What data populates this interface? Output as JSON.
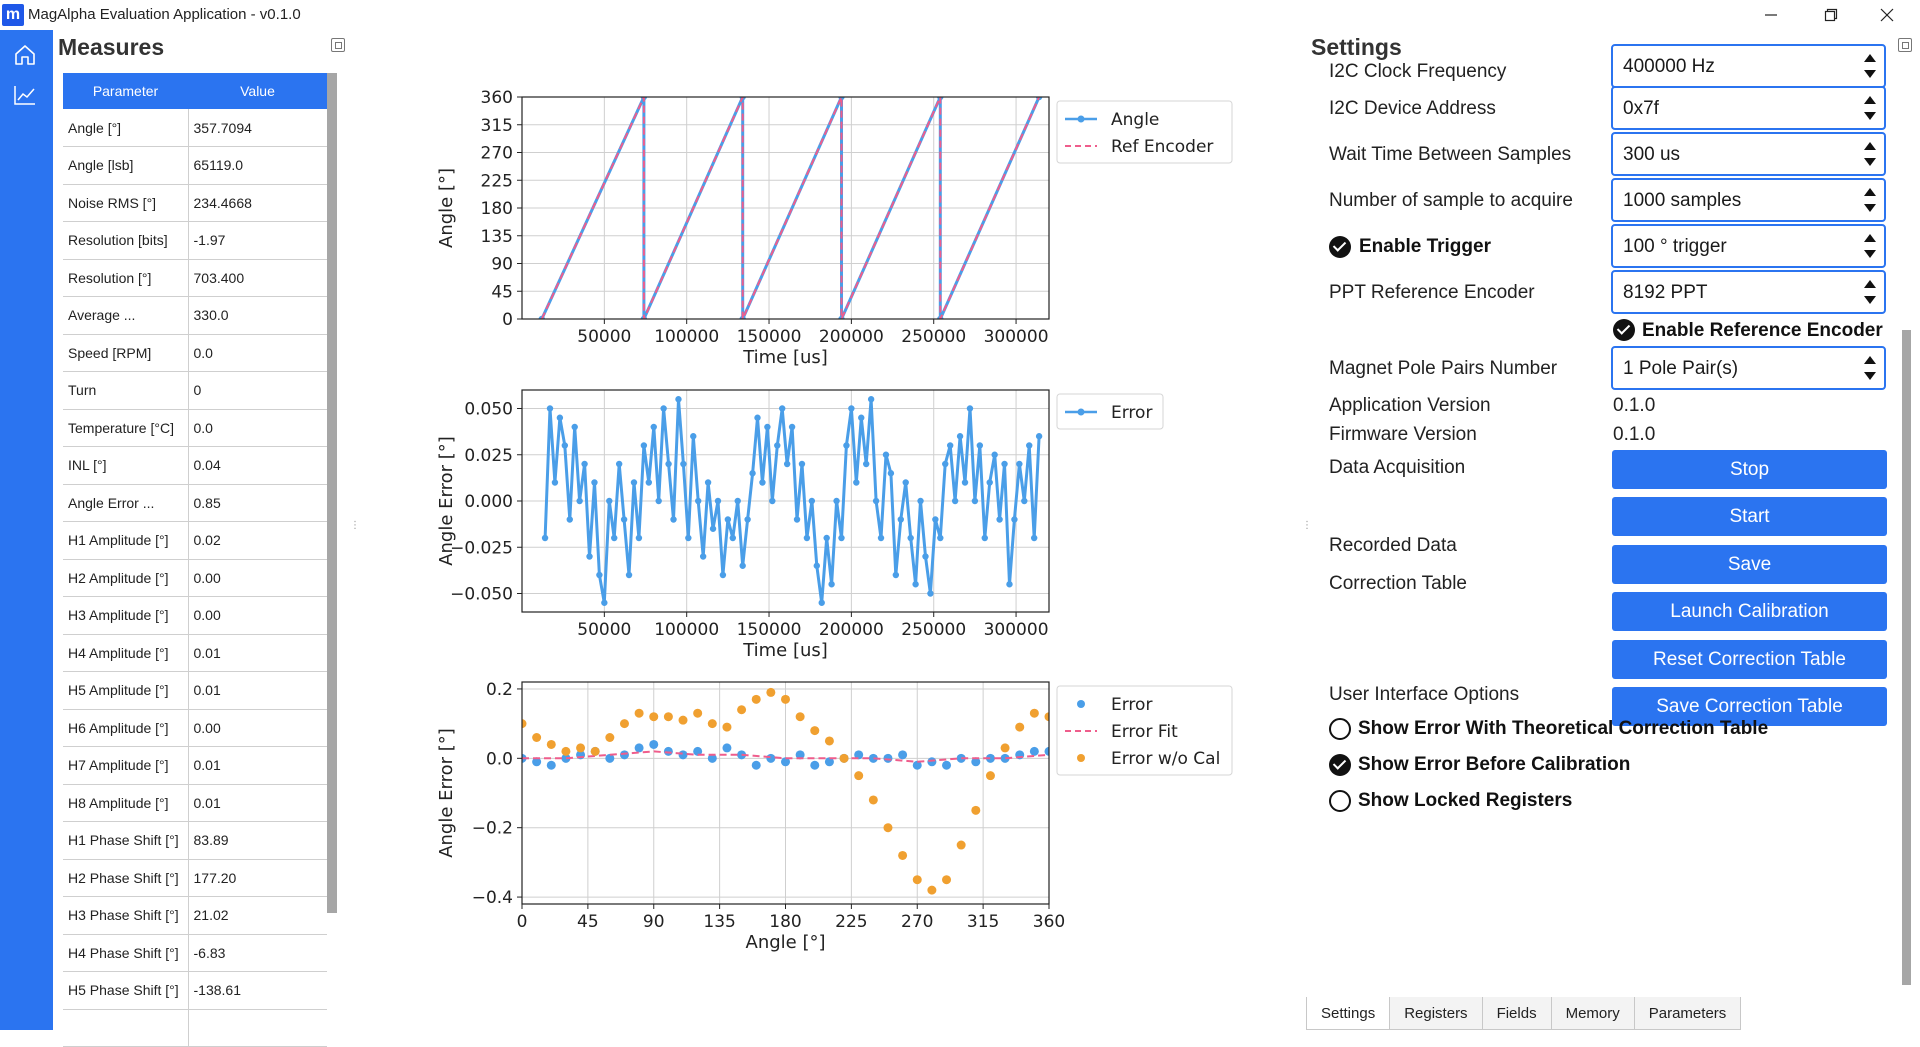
{
  "window": {
    "title": "MagAlpha Evaluation Application - v0.1.0",
    "app_icon_letter": "m"
  },
  "nav": {
    "items": [
      "home-icon",
      "chart-icon"
    ],
    "accent": "#2b74f0"
  },
  "measures": {
    "title": "Measures",
    "columns": [
      "Parameter",
      "Value"
    ],
    "rows": [
      [
        "Angle [°]",
        "357.7094"
      ],
      [
        "Angle [lsb]",
        "65119.0"
      ],
      [
        "Noise RMS [°]",
        "234.4668"
      ],
      [
        "Resolution [bits]",
        "-1.97"
      ],
      [
        "Resolution [°]",
        "703.400"
      ],
      [
        "Average ...",
        "330.0"
      ],
      [
        "Speed [RPM]",
        "0.0"
      ],
      [
        "Turn",
        "0"
      ],
      [
        "Temperature [°C]",
        "0.0"
      ],
      [
        "INL [°]",
        "0.04"
      ],
      [
        "Angle Error ...",
        "0.85"
      ],
      [
        "H1 Amplitude [°]",
        "0.02"
      ],
      [
        "H2 Amplitude [°]",
        "0.00"
      ],
      [
        "H3 Amplitude [°]",
        "0.00"
      ],
      [
        "H4 Amplitude [°]",
        "0.01"
      ],
      [
        "H5 Amplitude [°]",
        "0.01"
      ],
      [
        "H6 Amplitude [°]",
        "0.00"
      ],
      [
        "H7 Amplitude [°]",
        "0.01"
      ],
      [
        "H8 Amplitude [°]",
        "0.01"
      ],
      [
        "H1 Phase Shift [°]",
        "83.89"
      ],
      [
        "H2 Phase Shift [°]",
        "177.20"
      ],
      [
        "H3 Phase Shift [°]",
        "21.02"
      ],
      [
        "H4 Phase Shift [°]",
        "-6.83"
      ],
      [
        "H5 Phase Shift [°]",
        "-138.61"
      ],
      [
        "",
        ""
      ]
    ]
  },
  "chart_data": [
    {
      "type": "line",
      "xlabel": "Time [us]",
      "ylabel": "Angle [°]",
      "xlim": [
        0,
        320000
      ],
      "ylim": [
        0,
        360
      ],
      "xticks": [
        "50000",
        "100000",
        "150000",
        "200000",
        "250000",
        "300000"
      ],
      "yticks": [
        "0",
        "45",
        "90",
        "135",
        "180",
        "225",
        "270",
        "315",
        "360"
      ],
      "grid": true,
      "legend_position": "outside-right-top",
      "series": [
        {
          "name": "Angle",
          "color": "#4a9ee8",
          "style": "solid-markers",
          "x": [
            12000,
            74000,
            74000,
            134000,
            134000,
            194000,
            194000,
            254000,
            254000,
            314000
          ],
          "y": [
            0,
            360,
            0,
            360,
            0,
            360,
            0,
            360,
            0,
            360
          ]
        },
        {
          "name": "Ref Encoder",
          "color": "#ef5d8c",
          "style": "dashed",
          "x": [
            12000,
            74000,
            74000,
            134000,
            134000,
            194000,
            194000,
            254000,
            254000,
            314000
          ],
          "y": [
            0,
            360,
            0,
            360,
            0,
            360,
            0,
            360,
            0,
            360
          ]
        }
      ]
    },
    {
      "type": "line",
      "xlabel": "Time [us]",
      "ylabel": "Angle Error [°]",
      "xlim": [
        0,
        320000
      ],
      "ylim": [
        -0.06,
        0.06
      ],
      "xticks": [
        "50000",
        "100000",
        "150000",
        "200000",
        "250000",
        "300000"
      ],
      "yticks": [
        "−0.050",
        "−0.025",
        "0.000",
        "0.025",
        "0.050"
      ],
      "grid": true,
      "legend_position": "outside-right-top",
      "series": [
        {
          "name": "Error",
          "color": "#4a9ee8",
          "style": "solid-markers",
          "x": [
            14000,
            17000,
            20000,
            23000,
            26000,
            29000,
            32000,
            35000,
            38000,
            41000,
            44000,
            47000,
            50000,
            53000,
            56000,
            59000,
            62000,
            65000,
            68000,
            71000,
            74000,
            77000,
            80000,
            83000,
            86000,
            89000,
            92000,
            95000,
            98000,
            101000,
            104000,
            107000,
            110000,
            113000,
            116000,
            119000,
            122000,
            125000,
            128000,
            131000,
            134000,
            137000,
            140000,
            143000,
            146000,
            149000,
            152000,
            155000,
            158000,
            161000,
            164000,
            167000,
            170000,
            173000,
            176000,
            179000,
            182000,
            185000,
            188000,
            191000,
            194000,
            197000,
            200000,
            203000,
            206000,
            209000,
            212000,
            215000,
            218000,
            221000,
            224000,
            227000,
            230000,
            233000,
            236000,
            239000,
            242000,
            245000,
            248000,
            251000,
            254000,
            257000,
            260000,
            263000,
            266000,
            269000,
            272000,
            275000,
            278000,
            281000,
            284000,
            287000,
            290000,
            293000,
            296000,
            299000,
            302000,
            305000,
            308000,
            311000,
            314000
          ],
          "y": [
            -0.02,
            0.05,
            0.01,
            0.045,
            0.03,
            -0.01,
            0.04,
            0.0,
            0.02,
            -0.03,
            0.01,
            -0.04,
            -0.055,
            0.0,
            -0.02,
            0.02,
            -0.01,
            -0.04,
            0.01,
            -0.02,
            0.03,
            0.01,
            0.04,
            0.0,
            0.05,
            0.02,
            -0.01,
            0.055,
            0.02,
            -0.02,
            0.035,
            0.0,
            -0.03,
            0.01,
            -0.015,
            0.0,
            -0.04,
            -0.01,
            -0.02,
            0.0,
            -0.035,
            -0.01,
            0.015,
            0.045,
            0.01,
            0.04,
            0.0,
            0.03,
            0.05,
            0.02,
            0.04,
            -0.01,
            0.02,
            -0.02,
            0.0,
            -0.035,
            -0.055,
            -0.02,
            -0.045,
            0.0,
            -0.02,
            0.03,
            0.05,
            0.01,
            0.045,
            0.02,
            0.055,
            0.0,
            -0.02,
            0.025,
            0.015,
            -0.04,
            -0.01,
            0.01,
            -0.02,
            -0.045,
            0.0,
            -0.03,
            -0.05,
            -0.01,
            -0.02,
            0.02,
            0.03,
            0.0,
            0.035,
            0.01,
            0.05,
            0.0,
            0.03,
            -0.02,
            0.01,
            0.025,
            -0.01,
            0.02,
            -0.045,
            -0.01,
            0.02,
            0.0,
            0.03,
            -0.02,
            0.035
          ]
        }
      ]
    },
    {
      "type": "scatter",
      "xlabel": "Angle [°]",
      "ylabel": "Angle Error [°]",
      "xlim": [
        0,
        360
      ],
      "ylim": [
        -0.42,
        0.22
      ],
      "xticks": [
        "0",
        "45",
        "90",
        "135",
        "180",
        "225",
        "270",
        "315",
        "360"
      ],
      "yticks": [
        "−0.4",
        "−0.2",
        "0.0",
        "0.2"
      ],
      "grid": true,
      "legend_position": "outside-right-top",
      "series": [
        {
          "name": "Error",
          "color": "#4a9ee8",
          "style": "markers",
          "x": [
            0,
            10,
            20,
            30,
            40,
            50,
            60,
            70,
            80,
            90,
            100,
            110,
            120,
            130,
            140,
            150,
            160,
            170,
            180,
            190,
            200,
            210,
            220,
            230,
            240,
            250,
            260,
            270,
            280,
            290,
            300,
            310,
            320,
            330,
            340,
            350,
            360
          ],
          "y": [
            0.0,
            -0.01,
            -0.02,
            0.0,
            0.01,
            0.02,
            0.0,
            0.01,
            0.03,
            0.04,
            0.02,
            0.01,
            0.02,
            0.0,
            0.03,
            0.01,
            -0.02,
            0.0,
            -0.01,
            0.01,
            -0.02,
            -0.01,
            0.0,
            0.01,
            0.0,
            0.0,
            0.01,
            -0.02,
            -0.01,
            -0.02,
            0.0,
            -0.01,
            0.0,
            0.0,
            0.01,
            0.02,
            0.02
          ]
        },
        {
          "name": "Error Fit",
          "color": "#ef5d8c",
          "style": "dashed",
          "x": [
            0,
            30,
            60,
            90,
            120,
            150,
            180,
            210,
            240,
            270,
            300,
            330,
            360
          ],
          "y": [
            0.0,
            0.0,
            0.01,
            0.02,
            0.01,
            0.01,
            0.0,
            0.0,
            0.0,
            -0.01,
            0.0,
            0.0,
            0.01
          ]
        },
        {
          "name": "Error w/o Cal",
          "color": "#f0a030",
          "style": "markers",
          "x": [
            0,
            10,
            20,
            30,
            40,
            50,
            60,
            70,
            80,
            90,
            100,
            110,
            120,
            130,
            140,
            150,
            160,
            170,
            180,
            190,
            200,
            210,
            220,
            230,
            240,
            250,
            260,
            270,
            280,
            290,
            300,
            310,
            320,
            330,
            340,
            350,
            360
          ],
          "y": [
            0.1,
            0.06,
            0.04,
            0.02,
            0.03,
            0.02,
            0.06,
            0.1,
            0.13,
            0.12,
            0.12,
            0.11,
            0.13,
            0.1,
            0.09,
            0.14,
            0.17,
            0.19,
            0.17,
            0.12,
            0.08,
            0.05,
            0.0,
            -0.05,
            -0.12,
            -0.2,
            -0.28,
            -0.35,
            -0.38,
            -0.35,
            -0.25,
            -0.15,
            -0.05,
            0.03,
            0.09,
            0.13,
            0.12
          ]
        }
      ]
    }
  ],
  "settings": {
    "title": "Settings",
    "spinners": [
      {
        "label": "I2C Clock Frequency",
        "value": "400000 Hz"
      },
      {
        "label": "I2C Device Address",
        "value": "0x7f"
      },
      {
        "label": "Wait Time Between Samples",
        "value": "300 us"
      },
      {
        "label": "Number of sample to acquire",
        "value": "1000 samples"
      },
      {
        "label": "Enable Trigger",
        "value": "100 ° trigger"
      },
      {
        "label": "PPT Reference Encoder",
        "value": "8192 PPT"
      },
      {
        "label": "Magnet Pole Pairs Number",
        "value": "1 Pole Pair(s)"
      }
    ],
    "enable_reference_encoder": "Enable Reference Encoder",
    "application_version_label": "Application Version",
    "application_version": "0.1.0",
    "firmware_version_label": "Firmware Version",
    "firmware_version": "0.1.0",
    "data_acquisition_label": "Data Acquisition",
    "stop_button": "Stop",
    "start_button": "Start",
    "recorded_data_label": "Recorded Data",
    "save_button": "Save",
    "correction_table_label": "Correction Table",
    "launch_calibration_button": "Launch Calibration",
    "reset_correction_table_button": "Reset Correction Table",
    "save_correction_table_button": "Save Correction Table",
    "ui_options_label": "User Interface Options",
    "options": [
      {
        "label": "Show Error With Theoretical Correction Table",
        "checked": false
      },
      {
        "label": "Show Error Before Calibration",
        "checked": true
      },
      {
        "label": "Show Locked Registers",
        "checked": false
      }
    ]
  },
  "tabs": [
    "Settings",
    "Registers",
    "Fields",
    "Memory",
    "Parameters"
  ],
  "active_tab": "Settings"
}
